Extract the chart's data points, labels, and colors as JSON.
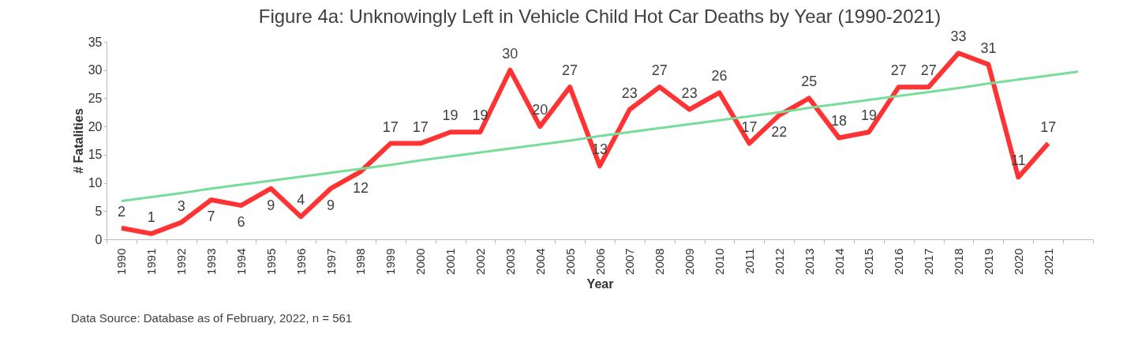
{
  "chart_data": {
    "type": "line",
    "title": "Figure 4a: Unknowingly Left in Vehicle Child Hot Car Deaths by Year (1990-2021)",
    "xlabel": "Year",
    "ylabel": "# Fatalities",
    "categories": [
      "1990",
      "1991",
      "1992",
      "1993",
      "1994",
      "1995",
      "1996",
      "1997",
      "1998",
      "1999",
      "2000",
      "2001",
      "2002",
      "2003",
      "2004",
      "2005",
      "2006",
      "2007",
      "2008",
      "2009",
      "2010",
      "2011",
      "2012",
      "2013",
      "2014",
      "2015",
      "2016",
      "2017",
      "2018",
      "2019",
      "2020",
      "2021",
      null
    ],
    "series": [
      {
        "color": "#ff3333",
        "values": [
          2,
          1,
          3,
          7,
          6,
          9,
          4,
          9,
          12,
          17,
          17,
          19,
          19,
          30,
          20,
          27,
          13,
          23,
          27,
          23,
          26,
          17,
          22,
          25,
          18,
          19,
          27,
          27,
          33,
          31,
          11,
          17,
          null
        ],
        "data_labels": true
      },
      {
        "type": "line",
        "color": "#77dd99",
        "values": [
          6.8,
          7.5,
          8.2,
          9.0,
          9.7,
          10.4,
          11.1,
          11.8,
          12.5,
          13.2,
          14.0,
          14.7,
          15.4,
          16.1,
          16.8,
          17.5,
          18.3,
          19.0,
          19.7,
          20.4,
          21.1,
          21.8,
          22.5,
          23.3,
          24.0,
          24.7,
          25.4,
          26.1,
          26.8,
          27.6,
          28.3,
          29.0,
          29.7
        ]
      }
    ],
    "ylim": [
      0,
      35
    ],
    "yticks": [
      0,
      5,
      10,
      15,
      20,
      25,
      30,
      35
    ],
    "grid": false,
    "marker": "none",
    "line_style": "solid",
    "annotations": [
      "Data Source: Database as of February, 2022,  n = 561"
    ]
  }
}
